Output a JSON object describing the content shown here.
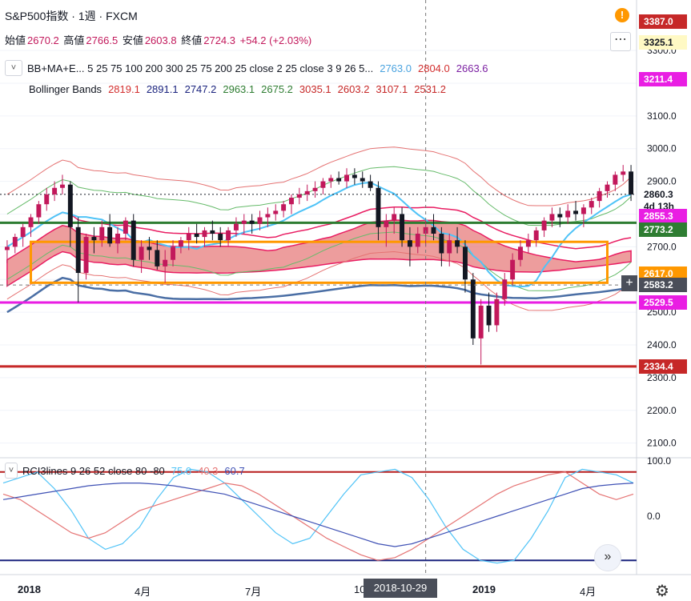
{
  "header": {
    "symbol": "S&P500指数",
    "interval": "1週",
    "source": "FXCM",
    "separator": "·"
  },
  "ohlc": {
    "open_label": "始値",
    "open": "2670.2",
    "high_label": "高値",
    "high": "2766.5",
    "low_label": "安値",
    "low": "2603.8",
    "close_label": "終値",
    "close": "2724.3",
    "change": "+54.2 (+2.03%)"
  },
  "legend": {
    "indicator1": "BB+MA+E... 5 25 75 100 200 300 25 75 200 25 close 2 25 close 3 9 26 5...",
    "indicator1_values": [
      {
        "v": "2763.0",
        "color": "#4aa3df"
      },
      {
        "v": "2804.0",
        "color": "#d32f2f"
      },
      {
        "v": "2663.6",
        "color": "#7b1fa2"
      }
    ],
    "indicator2": "Bollinger Bands",
    "indicator2_values": [
      {
        "v": "2819.1",
        "color": "#d32f2f"
      },
      {
        "v": "2891.1",
        "color": "#1a237e"
      },
      {
        "v": "2747.2",
        "color": "#1a237e"
      },
      {
        "v": "2963.1",
        "color": "#2e7d32"
      },
      {
        "v": "2675.2",
        "color": "#2e7d32"
      },
      {
        "v": "3035.1",
        "color": "#c62828"
      },
      {
        "v": "2603.2",
        "color": "#c62828"
      },
      {
        "v": "3107.1",
        "color": "#c62828"
      },
      {
        "v": "2531.2",
        "color": "#c62828"
      }
    ],
    "indicator3": "RCI3lines 9 26 52 close 80 -80",
    "indicator3_values": [
      {
        "v": "75.0",
        "color": "#4fc3f7"
      },
      {
        "v": "40.3",
        "color": "#e57373"
      },
      {
        "v": "60.7",
        "color": "#3f51b5"
      }
    ],
    "collapse_glyph": "˅"
  },
  "price_tags": [
    {
      "v": "3387.0",
      "bg": "#c62828",
      "fg": "#ffffff",
      "price": 3387
    },
    {
      "v": "3325.1",
      "bg": "#fff9c4",
      "fg": "#131722",
      "price": 3325.1
    },
    {
      "v": "3211.4",
      "bg": "#e91ee3",
      "fg": "#ffffff",
      "price": 3211.4
    },
    {
      "v": "2860.3",
      "bg": "#ffffff",
      "fg": "#131722",
      "price": 2860.3
    },
    {
      "v": "4d 13h",
      "bg": "#ffffff",
      "fg": "#131722",
      "price": 2823
    },
    {
      "v": "2855.3",
      "bg": "#e91ee3",
      "fg": "#ffffff",
      "price": 2795
    },
    {
      "v": "2773.2",
      "bg": "#2e7d32",
      "fg": "#ffffff",
      "price": 2753
    },
    {
      "v": "2617.0",
      "bg": "#ff9800",
      "fg": "#ffffff",
      "price": 2617
    },
    {
      "v": "2583.2",
      "bg": "#4a4e59",
      "fg": "#ffffff",
      "price": 2583.2
    },
    {
      "v": "2529.5",
      "bg": "#e91ee3",
      "fg": "#ffffff",
      "price": 2529.5
    },
    {
      "v": "2334.4",
      "bg": "#c62828",
      "fg": "#ffffff",
      "price": 2334.4
    }
  ],
  "rci_ticks": [
    "100.0",
    "0.0"
  ],
  "xaxis": {
    "labels": [
      {
        "t": "2018",
        "bold": true
      },
      {
        "t": "4月",
        "bold": false
      },
      {
        "t": "7月",
        "bold": false
      },
      {
        "t": "10",
        "bold": false
      },
      {
        "t": "2019",
        "bold": true
      },
      {
        "t": "4月",
        "bold": false
      }
    ],
    "crosshair_date": "2018-10-29"
  },
  "buttons": {
    "more": "⋯",
    "replay": "»",
    "alert": "!",
    "plus": "+",
    "gear": "⚙"
  },
  "chart_data": {
    "type": "candlestick",
    "title": "S&P500指数 · 1週 · FXCM",
    "yticks": [
      3300,
      3200,
      3100,
      3000,
      2900,
      2800,
      2700,
      2600,
      2500,
      2400,
      2300,
      2200,
      2100
    ],
    "ylim": [
      2060,
      3420
    ],
    "candles": [
      [
        2690,
        2720,
        2650,
        2700
      ],
      [
        2700,
        2740,
        2680,
        2730
      ],
      [
        2730,
        2770,
        2700,
        2760
      ],
      [
        2760,
        2800,
        2730,
        2790
      ],
      [
        2790,
        2840,
        2770,
        2830
      ],
      [
        2830,
        2880,
        2810,
        2860
      ],
      [
        2860,
        2900,
        2840,
        2880
      ],
      [
        2880,
        2920,
        2860,
        2890
      ],
      [
        2890,
        2900,
        2700,
        2760
      ],
      [
        2760,
        2790,
        2530,
        2620
      ],
      [
        2620,
        2740,
        2600,
        2730
      ],
      [
        2730,
        2760,
        2680,
        2720
      ],
      [
        2720,
        2780,
        2700,
        2760
      ],
      [
        2760,
        2800,
        2700,
        2710
      ],
      [
        2710,
        2760,
        2680,
        2740
      ],
      [
        2740,
        2790,
        2720,
        2780
      ],
      [
        2780,
        2800,
        2640,
        2660
      ],
      [
        2660,
        2720,
        2620,
        2700
      ],
      [
        2700,
        2730,
        2660,
        2690
      ],
      [
        2690,
        2720,
        2630,
        2640
      ],
      [
        2640,
        2690,
        2590,
        2660
      ],
      [
        2660,
        2720,
        2640,
        2700
      ],
      [
        2700,
        2730,
        2680,
        2720
      ],
      [
        2720,
        2760,
        2690,
        2740
      ],
      [
        2740,
        2770,
        2710,
        2730
      ],
      [
        2730,
        2760,
        2700,
        2750
      ],
      [
        2750,
        2780,
        2720,
        2740
      ],
      [
        2740,
        2760,
        2700,
        2720
      ],
      [
        2720,
        2760,
        2700,
        2750
      ],
      [
        2750,
        2790,
        2730,
        2770
      ],
      [
        2770,
        2800,
        2740,
        2780
      ],
      [
        2780,
        2800,
        2740,
        2770
      ],
      [
        2770,
        2810,
        2750,
        2790
      ],
      [
        2790,
        2820,
        2760,
        2800
      ],
      [
        2800,
        2830,
        2780,
        2810
      ],
      [
        2810,
        2840,
        2790,
        2830
      ],
      [
        2830,
        2860,
        2800,
        2850
      ],
      [
        2850,
        2880,
        2830,
        2860
      ],
      [
        2860,
        2890,
        2840,
        2870
      ],
      [
        2870,
        2900,
        2850,
        2880
      ],
      [
        2880,
        2910,
        2860,
        2900
      ],
      [
        2900,
        2920,
        2880,
        2910
      ],
      [
        2910,
        2930,
        2890,
        2900
      ],
      [
        2900,
        2940,
        2880,
        2920
      ],
      [
        2920,
        2940,
        2890,
        2910
      ],
      [
        2910,
        2930,
        2880,
        2900
      ],
      [
        2900,
        2920,
        2870,
        2880
      ],
      [
        2880,
        2900,
        2720,
        2760
      ],
      [
        2760,
        2800,
        2700,
        2780
      ],
      [
        2780,
        2820,
        2740,
        2800
      ],
      [
        2800,
        2820,
        2700,
        2720
      ],
      [
        2720,
        2760,
        2640,
        2700
      ],
      [
        2700,
        2760,
        2680,
        2740
      ],
      [
        2740,
        2780,
        2700,
        2760
      ],
      [
        2760,
        2800,
        2720,
        2740
      ],
      [
        2740,
        2760,
        2640,
        2680
      ],
      [
        2680,
        2740,
        2640,
        2720
      ],
      [
        2720,
        2760,
        2680,
        2700
      ],
      [
        2700,
        2720,
        2560,
        2600
      ],
      [
        2600,
        2620,
        2400,
        2420
      ],
      [
        2420,
        2540,
        2340,
        2520
      ],
      [
        2520,
        2560,
        2440,
        2460
      ],
      [
        2460,
        2560,
        2440,
        2540
      ],
      [
        2540,
        2620,
        2520,
        2600
      ],
      [
        2600,
        2680,
        2580,
        2660
      ],
      [
        2660,
        2720,
        2640,
        2700
      ],
      [
        2700,
        2740,
        2680,
        2720
      ],
      [
        2720,
        2760,
        2700,
        2750
      ],
      [
        2750,
        2790,
        2730,
        2780
      ],
      [
        2780,
        2820,
        2760,
        2800
      ],
      [
        2800,
        2820,
        2760,
        2790
      ],
      [
        2790,
        2830,
        2770,
        2810
      ],
      [
        2810,
        2840,
        2780,
        2800
      ],
      [
        2800,
        2830,
        2760,
        2820
      ],
      [
        2820,
        2850,
        2800,
        2840
      ],
      [
        2840,
        2880,
        2820,
        2870
      ],
      [
        2870,
        2900,
        2850,
        2890
      ],
      [
        2890,
        2930,
        2870,
        2920
      ],
      [
        2920,
        2950,
        2900,
        2930
      ],
      [
        2930,
        2950,
        2840,
        2860
      ]
    ],
    "hlines": [
      {
        "price": 2773.2,
        "color": "#2e7d32",
        "width": 3
      },
      {
        "price": 2529.5,
        "color": "#e91ee3",
        "width": 3
      },
      {
        "price": 2334.4,
        "color": "#c62828",
        "width": 3
      },
      {
        "price": 2860.3,
        "color": "#131722",
        "width": 1,
        "dash": true
      }
    ],
    "box": {
      "i0": 3,
      "i1": 76,
      "top": 2715,
      "bottom": 2590,
      "color": "#ff9800"
    },
    "crosshair_index": 53,
    "rci": {
      "levels": [
        80,
        -80
      ],
      "ylim": [
        -100,
        100
      ],
      "short": [
        60,
        70,
        80,
        50,
        10,
        -40,
        -60,
        -50,
        -20,
        30,
        70,
        85,
        80,
        60,
        30,
        0,
        -30,
        -50,
        -40,
        0,
        40,
        75,
        80,
        85,
        70,
        30,
        -20,
        -60,
        -80,
        -85,
        -80,
        -40,
        10,
        70,
        85,
        80,
        75,
        60
      ],
      "mid": [
        40,
        30,
        10,
        -10,
        -30,
        -40,
        -30,
        -10,
        10,
        20,
        30,
        40,
        50,
        60,
        55,
        40,
        20,
        0,
        -20,
        -40,
        -55,
        -70,
        -80,
        -75,
        -60,
        -40,
        -20,
        0,
        20,
        40,
        55,
        65,
        75,
        80,
        60,
        40,
        30,
        40
      ],
      "long": [
        30,
        35,
        40,
        45,
        50,
        55,
        58,
        60,
        60,
        58,
        55,
        50,
        45,
        40,
        30,
        20,
        10,
        0,
        -10,
        -20,
        -30,
        -40,
        -50,
        -55,
        -50,
        -40,
        -30,
        -20,
        -10,
        0,
        10,
        20,
        30,
        40,
        50,
        55,
        58,
        60
      ]
    }
  }
}
